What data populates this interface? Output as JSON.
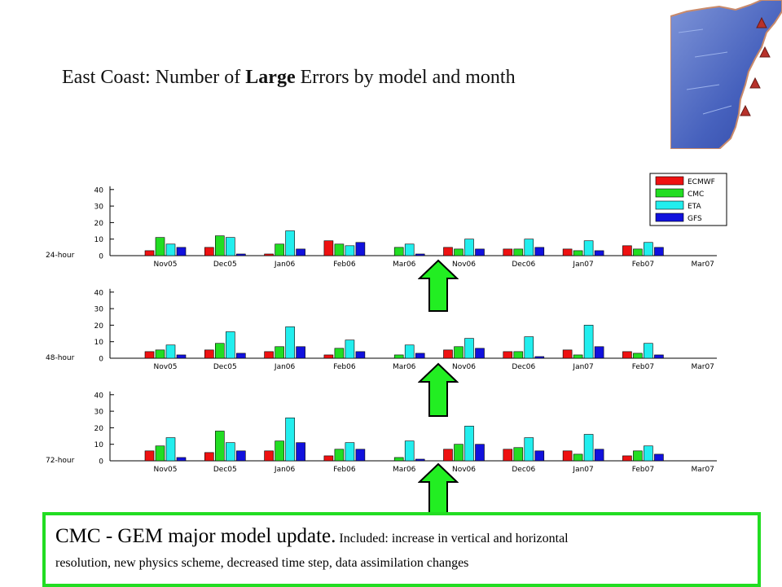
{
  "title": {
    "prefix": "East Coast: Number of ",
    "bold": "Large",
    "suffix": " Errors by model and month"
  },
  "note": {
    "headline": "CMC - GEM major model update.",
    "detail_1": "Included: increase in vertical and horizontal",
    "detail_2": "resolution, new physics scheme, decreased time step, data assimilation changes"
  },
  "map_icon": "us-east-coast-map-icon",
  "colors": {
    "ECMWF": "#ee1111",
    "CMC": "#22dd22",
    "ETA": "#22eeee",
    "GFS": "#1111dd",
    "arrow": "#22ee22"
  },
  "chart_data": [
    {
      "type": "bar",
      "panel_label": "24-hour",
      "categories": [
        "Nov05",
        "Dec05",
        "Jan06",
        "Feb06",
        "Mar06",
        "Nov06",
        "Dec06",
        "Jan07",
        "Feb07",
        "Mar07"
      ],
      "ylim": [
        0,
        40
      ],
      "yticks": [
        0,
        10,
        20,
        30,
        40
      ],
      "legend": "top-right",
      "series": [
        {
          "name": "ECMWF",
          "values": [
            3,
            5,
            1,
            9,
            null,
            5,
            4,
            4,
            6,
            null
          ]
        },
        {
          "name": "CMC",
          "values": [
            11,
            12,
            7,
            7,
            5,
            4,
            4,
            3,
            4,
            null
          ]
        },
        {
          "name": "ETA",
          "values": [
            7,
            11,
            15,
            6,
            7,
            10,
            10,
            9,
            8,
            null
          ]
        },
        {
          "name": "GFS",
          "values": [
            5,
            1,
            4,
            8,
            1,
            4,
            5,
            3,
            5,
            null
          ]
        }
      ]
    },
    {
      "type": "bar",
      "panel_label": "48-hour",
      "categories": [
        "Nov05",
        "Dec05",
        "Jan06",
        "Feb06",
        "Mar06",
        "Nov06",
        "Dec06",
        "Jan07",
        "Feb07",
        "Mar07"
      ],
      "ylim": [
        0,
        40
      ],
      "yticks": [
        0,
        10,
        20,
        30,
        40
      ],
      "series": [
        {
          "name": "ECMWF",
          "values": [
            4,
            5,
            4,
            2,
            null,
            5,
            4,
            5,
            4,
            null
          ]
        },
        {
          "name": "CMC",
          "values": [
            5,
            9,
            7,
            6,
            2,
            7,
            4,
            2,
            3,
            null
          ]
        },
        {
          "name": "ETA",
          "values": [
            8,
            16,
            19,
            11,
            8,
            12,
            13,
            20,
            9,
            null
          ]
        },
        {
          "name": "GFS",
          "values": [
            2,
            3,
            7,
            4,
            3,
            6,
            1,
            7,
            2,
            null
          ]
        }
      ]
    },
    {
      "type": "bar",
      "panel_label": "72-hour",
      "categories": [
        "Nov05",
        "Dec05",
        "Jan06",
        "Feb06",
        "Mar06",
        "Nov06",
        "Dec06",
        "Jan07",
        "Feb07",
        "Mar07"
      ],
      "ylim": [
        0,
        40
      ],
      "yticks": [
        0,
        10,
        20,
        30,
        40
      ],
      "series": [
        {
          "name": "ECMWF",
          "values": [
            6,
            5,
            6,
            3,
            null,
            7,
            7,
            6,
            3,
            null
          ]
        },
        {
          "name": "CMC",
          "values": [
            9,
            18,
            12,
            7,
            2,
            10,
            8,
            4,
            6,
            null
          ]
        },
        {
          "name": "ETA",
          "values": [
            14,
            11,
            26,
            11,
            12,
            21,
            14,
            16,
            9,
            null
          ]
        },
        {
          "name": "GFS",
          "values": [
            2,
            6,
            11,
            7,
            1,
            10,
            6,
            7,
            4,
            null
          ]
        }
      ]
    }
  ]
}
